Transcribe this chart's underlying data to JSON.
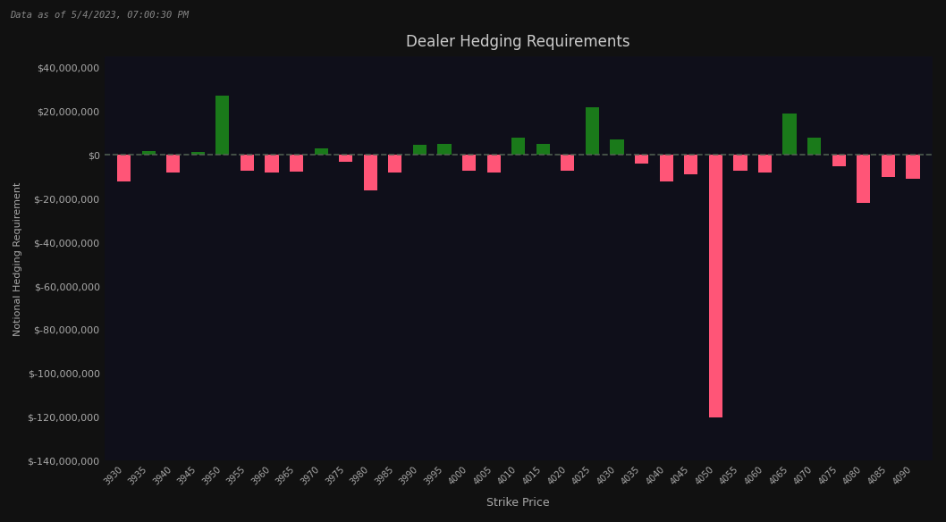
{
  "title": "Dealer Hedging Requirements",
  "subtitle": "Data as of 5/4/2023, 07:00:30 PM",
  "xlabel": "Strike Price",
  "ylabel": "Notional Hedging Requirement",
  "background_color": "#111111",
  "panel_color": "#1a1a2e",
  "plot_bg_color": "#0f0f1a",
  "text_color": "#aaaaaa",
  "title_color": "#cccccc",
  "grid_color": "#2a2a3a",
  "positive_color": "#1a7a1a",
  "negative_color": "#ff5577",
  "dashed_line_color": "#556655",
  "ylim": [
    -140000000,
    45000000
  ],
  "categories": [
    3930,
    3935,
    3940,
    3945,
    3950,
    3955,
    3960,
    3965,
    3970,
    3975,
    3980,
    3985,
    3990,
    3995,
    4000,
    4005,
    4010,
    4015,
    4020,
    4025,
    4030,
    4035,
    4040,
    4045,
    4050,
    4055,
    4060,
    4065,
    4070,
    4075,
    4080,
    4085,
    4090
  ],
  "values": [
    -12000000,
    2000000,
    -8000000,
    1500000,
    27000000,
    -7000000,
    -8000000,
    -7500000,
    3000000,
    -3000000,
    -16000000,
    -8000000,
    4500000,
    5000000,
    -7000000,
    -8000000,
    8000000,
    5000000,
    -7000000,
    22000000,
    7000000,
    -4000000,
    -12000000,
    -9000000,
    -120000000,
    -7000000,
    -8000000,
    19000000,
    8000000,
    -5000000,
    -22000000,
    -10000000,
    -11000000
  ]
}
